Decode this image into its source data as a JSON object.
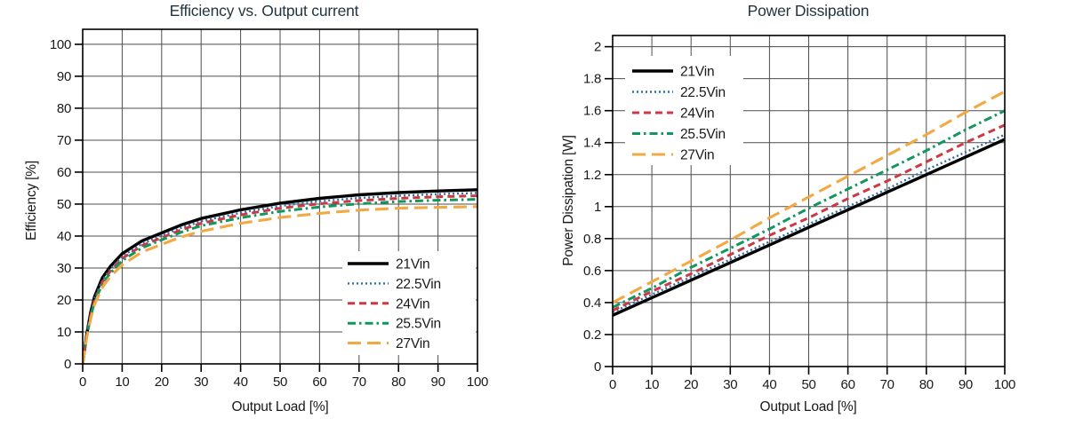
{
  "page": {
    "background": "#ffffff"
  },
  "colors": {
    "grid": "#4d4d4d",
    "axis": "#000000",
    "title_text": "#233540",
    "tick_text": "#1a1a1a",
    "legend_background": "#ffffff"
  },
  "chart_data": [
    {
      "type": "line",
      "title": "Efficiency vs. Output current",
      "xlabel": "Output Load [%]",
      "ylabel": "Efficiency [%]",
      "xlim": [
        0,
        100
      ],
      "ylim": [
        0,
        104.7
      ],
      "grid": true,
      "legend_position": "lower-right",
      "xtick_values": [
        0,
        10,
        20,
        30,
        40,
        50,
        60,
        70,
        80,
        90,
        100
      ],
      "xtick_labels": [
        "0",
        "10",
        "20",
        "30",
        "40",
        "50",
        "60",
        "70",
        "80",
        "90",
        "100"
      ],
      "ytick_values": [
        0,
        10,
        20,
        30,
        40,
        50,
        60,
        70,
        80,
        90,
        100
      ],
      "ytick_labels": [
        "0",
        "10",
        "20",
        "30",
        "40",
        "50",
        "60",
        "70",
        "80",
        "90",
        "100"
      ],
      "x": [
        0,
        1,
        2,
        3,
        5,
        7,
        10,
        15,
        20,
        25,
        30,
        40,
        50,
        60,
        70,
        80,
        90,
        100
      ],
      "series": [
        {
          "name": "21Vin",
          "color": "#000000",
          "style": "solid",
          "values": [
            0,
            9,
            16,
            21,
            27,
            30.5,
            34.5,
            38.5,
            41,
            43.5,
            45.5,
            48.2,
            50.3,
            51.8,
            52.9,
            53.6,
            54.1,
            54.5
          ]
        },
        {
          "name": "22.5Vin",
          "color": "#2f6da5",
          "style": "dotted",
          "values": [
            0,
            8.7,
            15.5,
            20.4,
            26.2,
            29.7,
            33.6,
            37.6,
            40.1,
            42.6,
            44.6,
            47.3,
            49.4,
            50.9,
            51.9,
            52.6,
            53.1,
            53.5
          ]
        },
        {
          "name": "24Vin",
          "color": "#cc3944",
          "style": "dashed",
          "values": [
            0,
            8.5,
            15.1,
            19.9,
            25.6,
            29,
            33,
            37,
            39.5,
            42,
            44,
            46.6,
            48.7,
            50.1,
            51.1,
            51.8,
            52.3,
            52.6
          ]
        },
        {
          "name": "25.5Vin",
          "color": "#11975d",
          "style": "dashdot",
          "values": [
            0,
            8.3,
            14.7,
            19.4,
            25,
            28.4,
            32.3,
            36.3,
            38.8,
            41.2,
            43.2,
            45.7,
            47.7,
            49.1,
            50.1,
            50.8,
            51.2,
            51.5
          ]
        },
        {
          "name": "27Vin",
          "color": "#f2a843",
          "style": "longdash",
          "values": [
            0,
            8,
            14,
            18.6,
            24,
            27.3,
            31,
            35,
            37.4,
            39.7,
            41.5,
            44,
            45.8,
            47.1,
            48.1,
            48.7,
            49,
            49.2
          ]
        }
      ]
    },
    {
      "type": "line",
      "title": "Power Dissipation",
      "xlabel": "Output Load [%]",
      "ylabel": "Power Dissipation [W]",
      "xlim": [
        0,
        100
      ],
      "ylim": [
        0,
        2.07
      ],
      "grid": true,
      "legend_position": "upper-left",
      "xtick_values": [
        0,
        10,
        20,
        30,
        40,
        50,
        60,
        70,
        80,
        90,
        100
      ],
      "xtick_labels": [
        "0",
        "10",
        "20",
        "30",
        "40",
        "50",
        "60",
        "70",
        "80",
        "90",
        "100"
      ],
      "ytick_values": [
        0,
        0.2,
        0.4,
        0.6,
        0.8,
        1,
        1.2,
        1.4,
        1.6,
        1.8,
        2
      ],
      "ytick_labels": [
        "0",
        "0.2",
        "0.4",
        "0.6",
        "0.8",
        "1",
        "1.2",
        "1.4",
        "1.6",
        "1.8",
        "2"
      ],
      "x": [
        0,
        10,
        20,
        30,
        40,
        50,
        60,
        70,
        80,
        90,
        100
      ],
      "series": [
        {
          "name": "21Vin",
          "color": "#000000",
          "style": "solid",
          "values": [
            0.32,
            0.43,
            0.54,
            0.65,
            0.76,
            0.87,
            0.98,
            1.09,
            1.2,
            1.31,
            1.42
          ]
        },
        {
          "name": "22.5Vin",
          "color": "#2f6da5",
          "style": "dotted",
          "values": [
            0.34,
            0.45,
            0.56,
            0.67,
            0.78,
            0.89,
            1.0,
            1.11,
            1.23,
            1.34,
            1.45
          ]
        },
        {
          "name": "24Vin",
          "color": "#cc3944",
          "style": "dashed",
          "values": [
            0.35,
            0.47,
            0.58,
            0.7,
            0.82,
            0.93,
            1.05,
            1.16,
            1.28,
            1.4,
            1.51
          ]
        },
        {
          "name": "25.5Vin",
          "color": "#11975d",
          "style": "dashdot",
          "values": [
            0.37,
            0.49,
            0.62,
            0.74,
            0.86,
            0.99,
            1.11,
            1.23,
            1.35,
            1.48,
            1.6
          ]
        },
        {
          "name": "27Vin",
          "color": "#f2a843",
          "style": "longdash",
          "values": [
            0.4,
            0.53,
            0.66,
            0.79,
            0.93,
            1.06,
            1.19,
            1.32,
            1.45,
            1.59,
            1.72
          ]
        }
      ]
    }
  ]
}
